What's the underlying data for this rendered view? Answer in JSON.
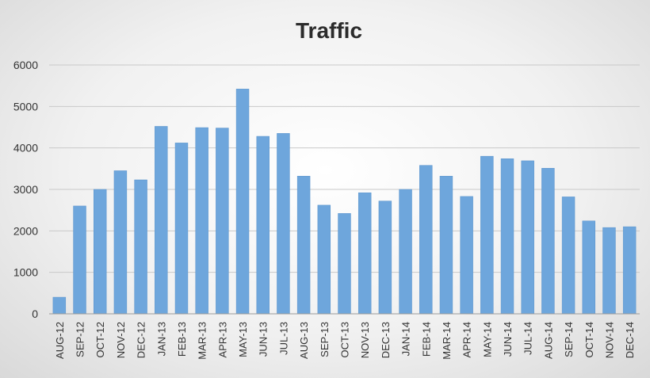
{
  "chart_data": {
    "type": "bar",
    "title": "Traffic",
    "xlabel": "",
    "ylabel": "",
    "ylim": [
      0,
      6000
    ],
    "yticks": [
      "0",
      "1000",
      "2000",
      "3000",
      "4000",
      "5000",
      "6000"
    ],
    "grid": true,
    "legend": "none",
    "bar_color": "#6ea6dc",
    "categories": [
      "AUG-12",
      "SEP-12",
      "OCT-12",
      "NOV-12",
      "DEC-12",
      "JAN-13",
      "FEB-13",
      "MAR-13",
      "APR-13",
      "MAY-13",
      "JUN-13",
      "JUL-13",
      "AUG-13",
      "SEP-13",
      "OCT-13",
      "NOV-13",
      "DEC-13",
      "JAN-14",
      "FEB-14",
      "MAR-14",
      "APR-14",
      "MAY-14",
      "JUN-14",
      "JUL-14",
      "AUG-14",
      "SEP-14",
      "OCT-14",
      "NOV-14",
      "DEC-14"
    ],
    "values": [
      400,
      2600,
      3000,
      3450,
      3230,
      4520,
      4120,
      4490,
      4480,
      5420,
      4280,
      4350,
      3320,
      2620,
      2420,
      2920,
      2720,
      3000,
      3580,
      3320,
      2830,
      3800,
      3740,
      3690,
      3510,
      2820,
      2240,
      2080,
      2100
    ]
  }
}
